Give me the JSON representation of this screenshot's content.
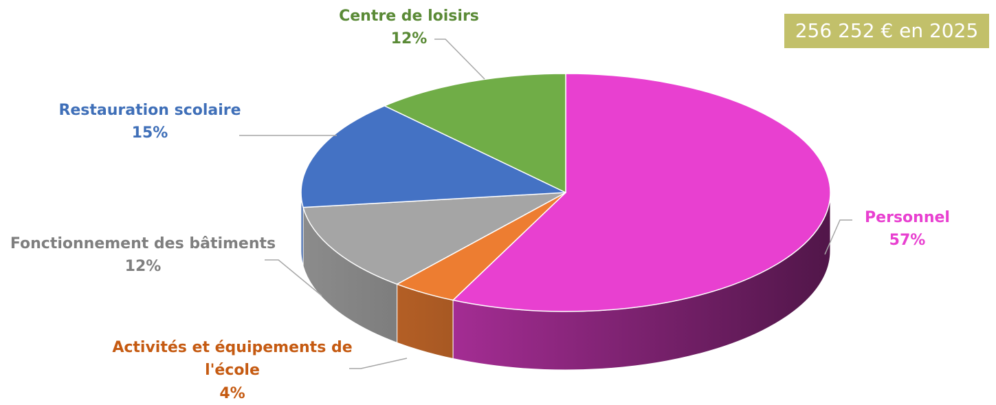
{
  "chart_data": {
    "type": "pie",
    "annotation": "256 252 € en 2025",
    "categories": [
      "Personnel",
      "Activités et équipements de l'école",
      "Fonctionnement des bâtiments",
      "Restauration scolaire",
      "Centre de loisirs"
    ],
    "values": [
      57,
      4,
      12,
      15,
      12
    ],
    "value_labels": [
      "57%",
      "4%",
      "12%",
      "15%",
      "12%"
    ],
    "colors": [
      "#e840d0",
      "#ed7d31",
      "#a5a5a5",
      "#4472c4",
      "#70ad47"
    ],
    "label_colors": [
      "#e840d0",
      "#c55a11",
      "#7f7f7f",
      "#3f6fb8",
      "#5a8a36"
    ]
  }
}
